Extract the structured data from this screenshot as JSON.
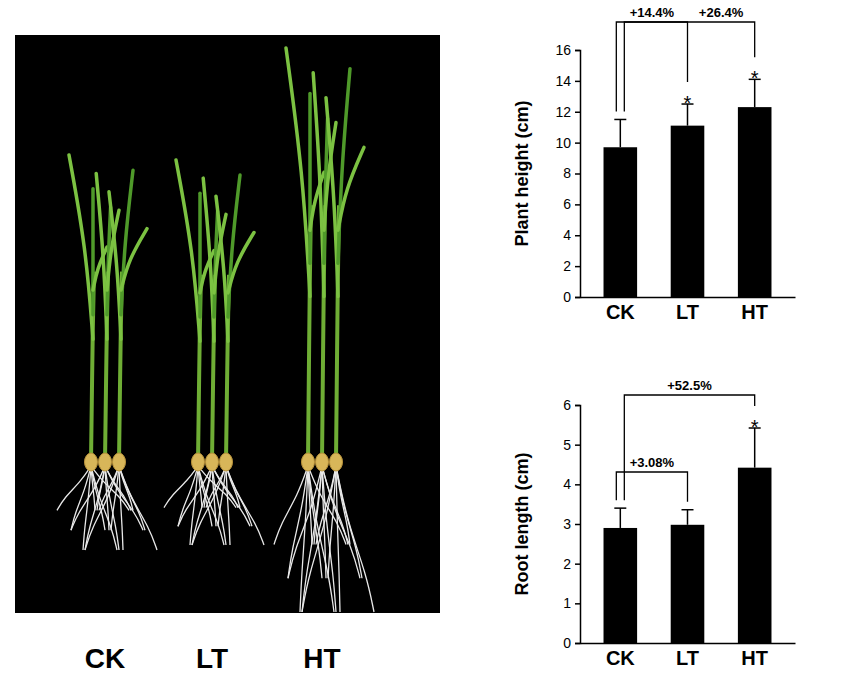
{
  "photo": {
    "labels": [
      "CK",
      "LT",
      "HT"
    ]
  },
  "chart_data": [
    {
      "type": "bar",
      "y_label": "Plant height (cm)",
      "categories": [
        "CK",
        "LT",
        "HT"
      ],
      "values": [
        9.7,
        11.1,
        12.3
      ],
      "errors": [
        1.8,
        1.4,
        1.8
      ],
      "color": "#000000",
      "ylim": [
        0,
        16
      ],
      "yticks": [
        0,
        2,
        4,
        6,
        8,
        10,
        12,
        14,
        16
      ],
      "significance": [
        null,
        "*",
        "*"
      ],
      "annotations": [
        {
          "text": "+14.4%",
          "from": 0,
          "to": 1
        },
        {
          "text": "+26.4%",
          "from": 0,
          "to": 2
        }
      ]
    },
    {
      "type": "bar",
      "y_label": "Root length (cm)",
      "categories": [
        "CK",
        "LT",
        "HT"
      ],
      "values": [
        2.9,
        2.98,
        4.42
      ],
      "errors": [
        0.5,
        0.38,
        1.0
      ],
      "color": "#000000",
      "ylim": [
        0,
        6
      ],
      "yticks": [
        0,
        1,
        2,
        3,
        4,
        5,
        6
      ],
      "significance": [
        null,
        null,
        "*"
      ],
      "annotations": [
        {
          "text": "+3.08%",
          "from": 0,
          "to": 1
        },
        {
          "text": "+52.5%",
          "from": 0,
          "to": 2
        }
      ]
    }
  ]
}
